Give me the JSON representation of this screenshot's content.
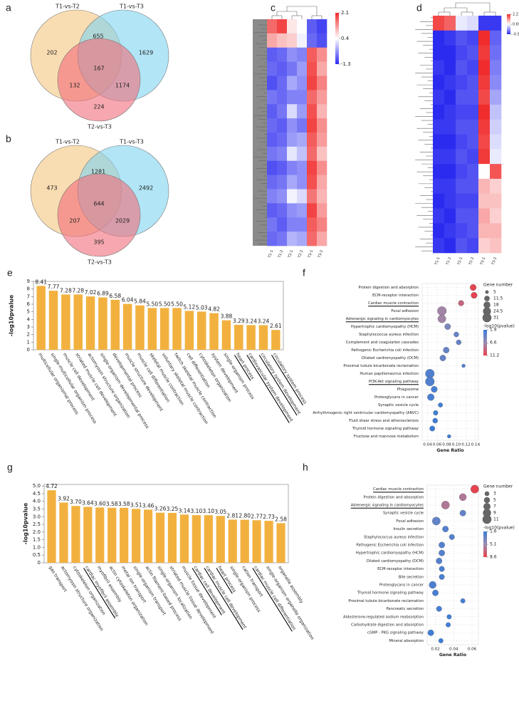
{
  "chart_data": [
    {
      "type": "venn",
      "panel": "a",
      "sets": [
        "T1-vs-T2",
        "T1-vs-T3",
        "T2-vs-T3"
      ],
      "colors": [
        "#f5c77e",
        "#7fd3f0",
        "#f26d7a"
      ],
      "values": [
        202,
        1629,
        224,
        655,
        132,
        1174,
        167
      ]
    },
    {
      "type": "venn",
      "panel": "b",
      "sets": [
        "T1-vs-T2",
        "T1-vs-T3",
        "T2-vs-T3"
      ],
      "colors": [
        "#f5c77e",
        "#7fd3f0",
        "#f26d7a"
      ],
      "values": [
        473,
        2492,
        395,
        1281,
        207,
        2029,
        644
      ]
    },
    {
      "type": "heatmap",
      "panel": "c",
      "columns": [
        "T1-1",
        "T1-2",
        "T2-1",
        "T2-2",
        "T3-1",
        "T3-2"
      ],
      "clim": [
        -1.3,
        2.1
      ],
      "cticks": [
        2.1,
        0.4,
        -1.3
      ],
      "colors": [
        "#2b2bf0",
        "#ffffff",
        "#f02b2b"
      ],
      "values": [
        [
          1.6,
          1.9,
          0.6,
          0.4,
          -0.9,
          -1.1
        ],
        [
          1.1,
          0.9,
          0.8,
          0.3,
          -0.8,
          -1.0
        ],
        [
          -0.9,
          -0.8,
          -0.5,
          -0.6,
          1.7,
          1.3
        ],
        [
          -0.8,
          -0.9,
          -0.7,
          -0.4,
          1.8,
          1.1
        ],
        [
          -1.0,
          -0.8,
          -0.3,
          -0.5,
          1.9,
          1.4
        ],
        [
          -0.7,
          -0.8,
          -0.6,
          -0.6,
          1.6,
          1.2
        ],
        [
          -0.9,
          -0.7,
          0.1,
          -0.4,
          1.8,
          1.0
        ],
        [
          -0.8,
          -0.9,
          -0.5,
          -0.7,
          1.9,
          1.3
        ],
        [
          -0.9,
          -0.8,
          -0.4,
          -0.3,
          1.7,
          1.2
        ],
        [
          -0.7,
          -0.6,
          0.2,
          -0.1,
          1.6,
          0.9
        ],
        [
          -1.0,
          -0.9,
          -0.6,
          -0.5,
          1.9,
          1.3
        ],
        [
          -0.8,
          -0.7,
          -0.3,
          -0.5,
          1.8,
          1.1
        ],
        [
          -0.6,
          -0.5,
          0.3,
          0.1,
          1.5,
          1.0
        ],
        [
          -0.9,
          -0.8,
          -0.5,
          -0.4,
          1.9,
          1.2
        ],
        [
          -0.7,
          -0.9,
          -0.6,
          -0.6,
          1.7,
          1.4
        ],
        [
          -0.8,
          -0.7,
          -0.2,
          -0.3,
          1.6,
          1.1
        ]
      ]
    },
    {
      "type": "heatmap",
      "panel": "d",
      "columns": [
        "T1-1",
        "T1-2",
        "T2-1",
        "T2-2",
        "T3-1",
        "T3-2"
      ],
      "clim": [
        -0.9,
        2.21
      ],
      "cticks": [
        2.21,
        0.65,
        {
          "value": -0.9,
          "label": "-0.90"
        }
      ],
      "colors": [
        "#2b2bf0",
        "#ffffff",
        "#f02b2b"
      ],
      "values": [
        [
          2.0,
          1.8,
          0.5,
          0.4,
          -0.8,
          -0.8
        ],
        [
          -0.9,
          -0.8,
          -0.6,
          -0.7,
          2.2,
          -0.5
        ],
        [
          -0.9,
          -0.9,
          -0.7,
          -0.6,
          2.1,
          -0.4
        ],
        [
          -0.8,
          -0.9,
          -0.6,
          -0.7,
          2.2,
          -0.3
        ],
        [
          -0.9,
          -0.8,
          -0.7,
          -0.6,
          2.1,
          -0.2
        ],
        [
          -0.8,
          -0.9,
          -0.6,
          -0.6,
          2.0,
          0.0
        ],
        [
          -0.9,
          -0.8,
          -0.7,
          -0.7,
          2.2,
          0.2
        ],
        [
          -0.8,
          -0.8,
          -0.6,
          -0.6,
          2.1,
          0.3
        ],
        [
          -0.9,
          -0.9,
          -0.7,
          -0.6,
          2.0,
          0.4
        ],
        [
          -0.8,
          -0.8,
          -0.6,
          -0.7,
          2.1,
          0.5
        ],
        [
          -0.9,
          -0.9,
          -0.7,
          -0.6,
          0.65,
          1.9
        ],
        [
          -0.8,
          -0.8,
          -0.6,
          -0.6,
          1.2,
          1.0
        ],
        [
          -0.9,
          -0.8,
          -0.7,
          -0.7,
          1.1,
          1.1
        ],
        [
          -0.8,
          -0.9,
          -0.6,
          -0.6,
          1.3,
          1.0
        ],
        [
          -0.9,
          -0.8,
          -0.7,
          -0.6,
          1.2,
          1.2
        ],
        [
          -0.8,
          -0.9,
          -0.6,
          -0.7,
          1.0,
          1.1
        ]
      ]
    },
    {
      "type": "bar",
      "panel": "e",
      "ylabel": "-log10pvalue",
      "color": "#f2b13f",
      "categories": [
        "multicellular organismal process",
        "single-multicellular organism process",
        "muscle cell development",
        "striated muscle cell development",
        "actomyosin structure organization",
        "single-organism developmental process",
        "developmental process",
        "muscle structure development",
        "muscle cell differentiation",
        "skeletal muscle contraction",
        "voluntary skeletal muscle contraction",
        "twitch skeletal muscle contraction",
        "cell differentiation",
        "cytoskeleton organization",
        "system development",
        "single-organism process",
        "heart process",
        "cardiovascular system development",
        "circulatory system development",
        "circulatory system process"
      ],
      "values": [
        8.41,
        7.77,
        7.28,
        7.28,
        7.02,
        6.89,
        6.58,
        6.04,
        5.84,
        5.5,
        5.5,
        5.5,
        5.12,
        5.03,
        4.82,
        3.88,
        3.29,
        3.24,
        3.24,
        2.61
      ],
      "value_labels": [
        "8.41",
        "7.77",
        "7.28",
        "7.28",
        "7.02",
        "6.89",
        "6.58",
        "6.04",
        "5.84",
        "5.50",
        "5.50",
        "5.50",
        "5.12",
        "5.03",
        "4.82",
        "3.88",
        "3.29",
        "3.24",
        "3.24",
        "2.61"
      ],
      "underlined": [
        16,
        17,
        18,
        19
      ],
      "ylim": [
        0,
        9
      ],
      "yticks": [
        0,
        1,
        2,
        3,
        4,
        5,
        6,
        7,
        8,
        9
      ]
    },
    {
      "type": "bubble",
      "panel": "f",
      "xlabel": "Gene Ratio",
      "size_title": "Gene number",
      "color_title": "-log10(pvalue)",
      "categories": [
        "Protein digestion and absorption",
        "ECM-receptor interaction",
        "Cardiac muscle contraction",
        "Focal adhesion",
        "Adrenergic signaling in cardiomyocytes",
        "Hypertrophic cardiomyopathy (HCM)",
        "Staphylococcus aureus infection",
        "Complement and coagulation cascades",
        "Pathogenic Escherichia coli infection",
        "Dilated cardiomyopathy (DCM)",
        "Proximal tubule bicarbonate reclamation",
        "Human papillomavirus infection",
        "PI3K-Akt signaling pathway",
        "Phagosome",
        "Proteoglycans in cancer",
        "Synaptic vesicle cycle",
        "Arrhythmogenic right ventricular cardiomyopathy (ARVC)",
        "Fluid shear stress and atherosclerosis",
        "Thyroid hormone signaling pathway",
        "Fructose and mannose metabolism"
      ],
      "values": [
        0.135,
        0.137,
        0.11,
        0.07,
        0.07,
        0.082,
        0.1,
        0.105,
        0.079,
        0.072,
        0.115,
        0.045,
        0.045,
        0.054,
        0.047,
        0.067,
        0.057,
        0.056,
        0.05,
        0.085
      ],
      "sizes": [
        15,
        15,
        12,
        31,
        25,
        14,
        10,
        10,
        14,
        14,
        5,
        31,
        31,
        15,
        18,
        8,
        9,
        10,
        11,
        5
      ],
      "color_values": [
        11,
        11,
        9,
        7,
        7,
        5,
        4,
        4,
        4,
        4,
        3,
        3,
        3,
        2.5,
        2.5,
        2.2,
        2.2,
        2,
        2,
        2
      ],
      "underlined": [
        2,
        4,
        12
      ],
      "xlim": [
        0.029,
        0.146
      ],
      "xticks": [
        0.04,
        0.06,
        0.08,
        {
          "value": 0.1,
          "label": "0.10"
        },
        0.12,
        0.14
      ],
      "size_ticks": [
        5,
        11.5,
        18,
        24.5,
        31
      ],
      "clim": [
        1.9,
        11.2
      ],
      "cticks": [
        1.9,
        6.6,
        11.2
      ],
      "colors": [
        "#3b7dd8",
        "#9b8bb0",
        "#e8414e"
      ],
      "grid": true
    },
    {
      "type": "bar",
      "panel": "g",
      "ylabel": "-log10pvalue",
      "color": "#f2b13f",
      "categories": [
        "gas transport",
        "actomyosin structure organization",
        "cytoskeleton organization",
        "cardiac myofibril assembly",
        "myofibril assembly",
        "actin cytoskeleton organization",
        "metal ion transport",
        "single-organism transport",
        "actin filament-based process",
        "single-organism localization",
        "striated muscle tissue development",
        "muscle tissue development",
        "cardiac cell development",
        "cardiac muscle cell development",
        "heart process",
        "single-organism process",
        "cation transport",
        "cardiac muscle cell differentiation",
        "single-organism organelle organization",
        "organelle assembly"
      ],
      "values": [
        4.72,
        3.92,
        3.7,
        3.64,
        3.6,
        3.58,
        3.58,
        3.51,
        3.46,
        3.26,
        3.25,
        3.14,
        3.1,
        3.1,
        3.05,
        2.81,
        2.8,
        2.77,
        2.73,
        2.58
      ],
      "value_labels": [
        "4.72",
        "3.92",
        "3.70",
        "3.64",
        "3.60",
        "3.58",
        "3.58",
        "3.51",
        "3.46",
        "3.26",
        "3.25",
        "3.14",
        "3.10",
        "3.10",
        "3.05",
        "2.81",
        "2.80",
        "2.77",
        "2.73",
        "2.58"
      ],
      "underlined": [
        3,
        12,
        13,
        14,
        17
      ],
      "ylim": [
        0,
        5.1
      ],
      "yticks": [
        0,
        0.5,
        {
          "value": 1,
          "label": "1.0"
        },
        1.5,
        {
          "value": 2,
          "label": "2.0"
        },
        2.5,
        {
          "value": 3,
          "label": "3.0"
        },
        3.5,
        {
          "value": 4,
          "label": "4.0"
        },
        4.5,
        {
          "value": 5,
          "label": "5.0"
        }
      ]
    },
    {
      "type": "bubble",
      "panel": "h",
      "xlabel": "Gene Ratio",
      "size_title": "Gene number",
      "color_title": "-log10(pvalue)",
      "categories": [
        "Cardiac muscle contraction",
        "Protein digestion and absorption",
        "Adrenergic signaling in cardiomyocytes",
        "Synaptic vesicle cycle",
        "Focal adhesion",
        "Insulin secretion",
        "Staphylococcus aureus infection",
        "Pathogenic Escherichia coli infection",
        "Hypertrophic cardiomyopathy (HCM)",
        "Dilated cardiomyopathy (DCM)",
        "ECM-receptor interaction",
        "Bile secretion",
        "Proteoglycans in cancer",
        "Thyroid hormone signaling pathway",
        "Proximal tubule bicarbonate reclamation",
        "Pancreatic secretion",
        "Aldosterone-regulated sodium reabsorption",
        "Carbohydrate digestion and absorption",
        "cGMP - PKG signaling pathway",
        "Mineral absorption"
      ],
      "values": [
        0.063,
        0.05,
        0.031,
        0.05,
        0.021,
        0.031,
        0.038,
        0.027,
        0.027,
        0.024,
        0.027,
        0.027,
        0.017,
        0.02,
        0.05,
        0.024,
        0.035,
        0.034,
        0.015,
        0.026
      ],
      "sizes": [
        9,
        7,
        9,
        5,
        9,
        5,
        4,
        5,
        5,
        5,
        4,
        4,
        7,
        5,
        3,
        4,
        3,
        3,
        5,
        3
      ],
      "color_values": [
        8.5,
        6,
        6,
        3,
        3,
        2.5,
        2.5,
        2.5,
        2.5,
        2.5,
        2.2,
        2.2,
        2.2,
        2,
        2,
        2,
        1.8,
        1.8,
        1.8,
        1.7
      ],
      "underlined": [
        0,
        2
      ],
      "xlim": [
        0.011,
        0.067
      ],
      "xticks": [
        0.02,
        0.04,
        0.06
      ],
      "size_ticks": [
        3,
        5,
        7,
        9,
        11
      ],
      "clim": [
        1.6,
        8.6
      ],
      "cticks": [
        1.6,
        5.1,
        8.6
      ],
      "colors": [
        "#3b7dd8",
        "#9b8bb0",
        "#e8414e"
      ],
      "grid": true
    }
  ]
}
